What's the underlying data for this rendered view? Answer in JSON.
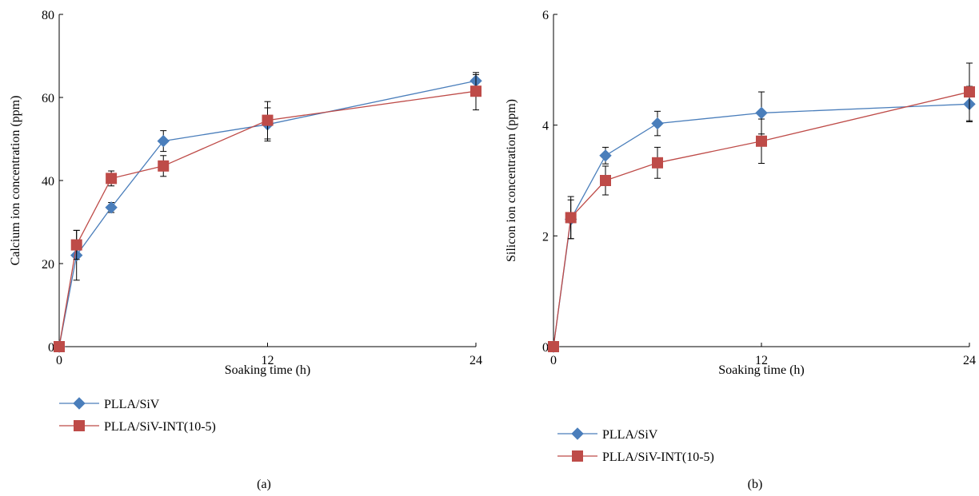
{
  "chart_data": [
    {
      "type": "line",
      "panel_label": "(a)",
      "xlabel": "Soaking time (h)",
      "ylabel": "Calcium ion concentration  (ppm)",
      "x_ticks": [
        "0",
        "12",
        "24"
      ],
      "y_ticks": [
        "0",
        "20",
        "40",
        "60",
        "80"
      ],
      "xlim": [
        0,
        24
      ],
      "ylim": [
        0,
        80
      ],
      "grid": false,
      "legend_position": "below",
      "series": [
        {
          "name": "PLLA/SiV",
          "color": "#4A7EBB",
          "marker": "diamond",
          "x": [
            0,
            1,
            3,
            6,
            12,
            24
          ],
          "y": [
            0,
            22,
            33.5,
            49.5,
            53.5,
            64
          ],
          "err": [
            0,
            6,
            1.2,
            2.5,
            4,
            1.5
          ]
        },
        {
          "name": "PLLA/SiV-INT(10-5)",
          "color": "#BE4B48",
          "marker": "square",
          "x": [
            0,
            1,
            3,
            6,
            12,
            24
          ],
          "y": [
            0,
            24.5,
            40.5,
            43.5,
            54.5,
            61.5
          ],
          "err": [
            0,
            3.5,
            1.8,
            2.5,
            4.5,
            4.5
          ]
        }
      ]
    },
    {
      "type": "line",
      "panel_label": "(b)",
      "xlabel": "Soaking time (h)",
      "ylabel": "Silicon ion concentration (ppm)",
      "x_ticks": [
        "0",
        "12",
        "24"
      ],
      "y_ticks": [
        "0",
        "2",
        "4",
        "6"
      ],
      "xlim": [
        0,
        24
      ],
      "ylim": [
        0,
        6
      ],
      "grid": false,
      "legend_position": "below",
      "series": [
        {
          "name": "PLLA/SiV",
          "color": "#4A7EBB",
          "marker": "diamond",
          "x": [
            0,
            1,
            3,
            6,
            12,
            24
          ],
          "y": [
            0,
            2.3,
            3.45,
            4.03,
            4.22,
            4.38
          ],
          "err": [
            0,
            0.35,
            0.15,
            0.22,
            0.38,
            0.32
          ]
        },
        {
          "name": "PLLA/SiV-INT(10-5)",
          "color": "#BE4B48",
          "marker": "square",
          "x": [
            0,
            1,
            3,
            6,
            12,
            24
          ],
          "y": [
            0,
            2.33,
            3.0,
            3.32,
            3.71,
            4.6
          ],
          "err": [
            0,
            0.38,
            0.26,
            0.28,
            0.4,
            0.52
          ]
        }
      ]
    }
  ]
}
